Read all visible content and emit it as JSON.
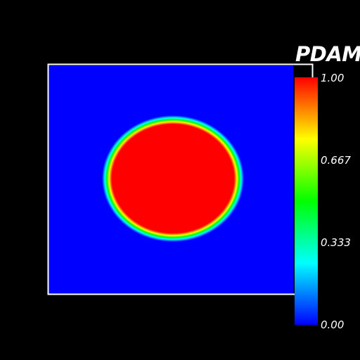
{
  "chart_data": {
    "type": "heatmap",
    "title": "",
    "colorbar": {
      "title": "PDAM",
      "range": [
        0.0,
        1.0
      ],
      "tick_labels": [
        "1.00",
        "0.667",
        "0.333",
        "0.00"
      ],
      "tick_values": [
        1.0,
        0.667,
        0.333,
        0.0
      ],
      "colormap": "rainbow (blue-cyan-green-yellow-red)"
    },
    "field": {
      "description": "circular region of value 1.00 centered in a square domain of value 0.00, with a narrow graded rim",
      "inside_value": 1.0,
      "outside_value": 0.0,
      "center_fraction": [
        0.5,
        0.45
      ],
      "radius_fraction": 0.28
    },
    "grid": false,
    "frame_color": "#ffffff"
  }
}
